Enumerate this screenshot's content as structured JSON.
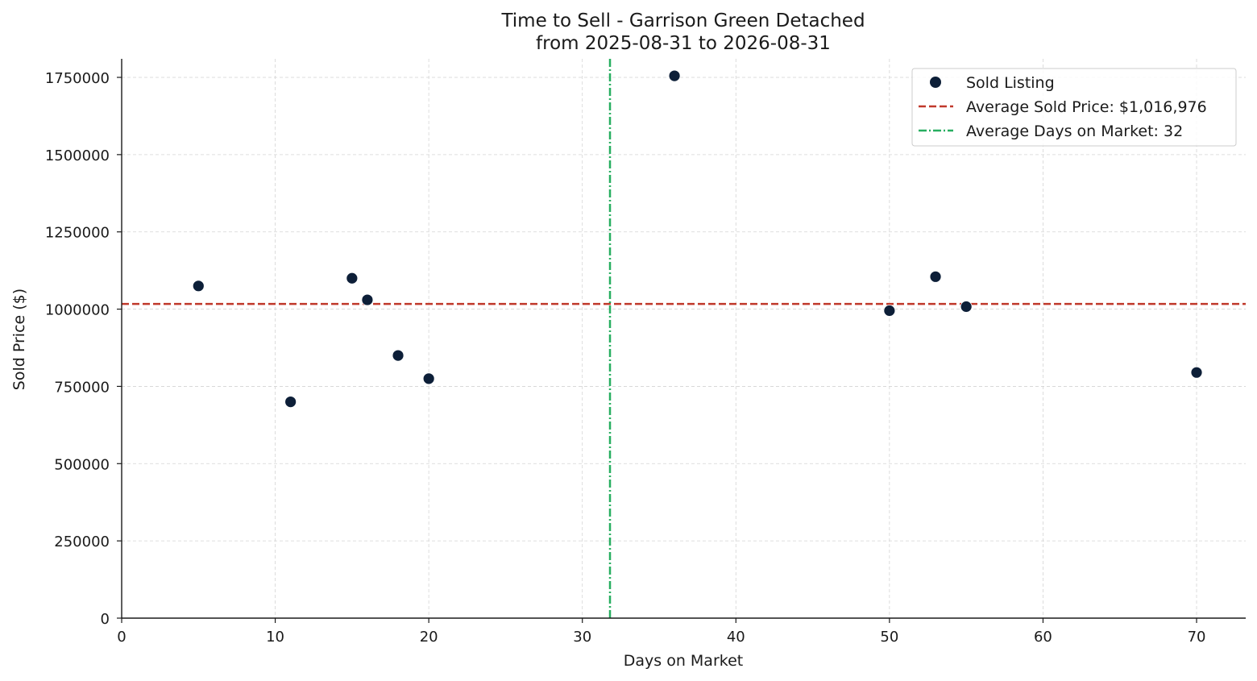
{
  "chart_data": {
    "type": "scatter",
    "title": "Time to Sell - Garrison Green Detached",
    "subtitle": "from 2025-08-31 to 2026-08-31",
    "xlabel": "Days on Market",
    "ylabel": "Sold Price ($)",
    "xlim": [
      0,
      73.2
    ],
    "ylim": [
      0,
      1810000
    ],
    "x_ticks": [
      0,
      10,
      20,
      30,
      40,
      50,
      60,
      70
    ],
    "y_ticks": [
      0,
      250000,
      500000,
      750000,
      1000000,
      1250000,
      1500000,
      1750000
    ],
    "grid": true,
    "legend_position": "top-right",
    "series": [
      {
        "name": "Sold Listing",
        "color": "#0d1f38",
        "points": [
          {
            "x": 5,
            "y": 1075000
          },
          {
            "x": 11,
            "y": 700000
          },
          {
            "x": 15,
            "y": 1100000
          },
          {
            "x": 16,
            "y": 1030000
          },
          {
            "x": 18,
            "y": 850000
          },
          {
            "x": 20,
            "y": 775000
          },
          {
            "x": 36,
            "y": 1755000
          },
          {
            "x": 50,
            "y": 995000
          },
          {
            "x": 53,
            "y": 1105000
          },
          {
            "x": 55,
            "y": 1008000
          },
          {
            "x": 70,
            "y": 795000
          }
        ]
      }
    ],
    "reference_lines": [
      {
        "name": "Average Sold Price: $1,016,976",
        "orientation": "horizontal",
        "value": 1016976,
        "color": "#c0392b",
        "style": "dashed"
      },
      {
        "name": "Average Days on Market: 32",
        "orientation": "vertical",
        "value": 31.8,
        "color": "#27ae60",
        "style": "dashdot"
      }
    ]
  }
}
